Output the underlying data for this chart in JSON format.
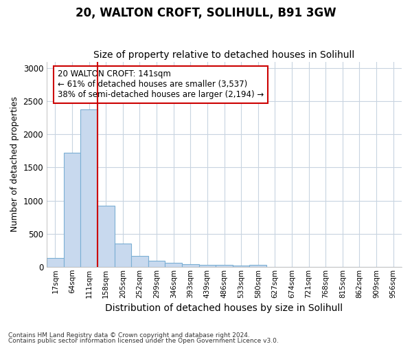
{
  "title1": "20, WALTON CROFT, SOLIHULL, B91 3GW",
  "title2": "Size of property relative to detached houses in Solihull",
  "xlabel": "Distribution of detached houses by size in Solihull",
  "ylabel": "Number of detached properties",
  "footer1": "Contains HM Land Registry data © Crown copyright and database right 2024.",
  "footer2": "Contains public sector information licensed under the Open Government Licence v3.0.",
  "bin_labels": [
    "17sqm",
    "64sqm",
    "111sqm",
    "158sqm",
    "205sqm",
    "252sqm",
    "299sqm",
    "346sqm",
    "393sqm",
    "439sqm",
    "486sqm",
    "533sqm",
    "580sqm",
    "627sqm",
    "674sqm",
    "721sqm",
    "768sqm",
    "815sqm",
    "862sqm",
    "909sqm",
    "956sqm"
  ],
  "bar_values": [
    130,
    1720,
    2380,
    920,
    350,
    160,
    90,
    55,
    40,
    30,
    25,
    20,
    25,
    0,
    0,
    0,
    0,
    0,
    0,
    0,
    0
  ],
  "bar_color": "#c8d9ee",
  "bar_edge_color": "#7bafd4",
  "vline_color": "#cc0000",
  "vline_pos": 2.5,
  "annotation_title": "20 WALTON CROFT: 141sqm",
  "annotation_line1": "← 61% of detached houses are smaller (3,537)",
  "annotation_line2": "38% of semi-detached houses are larger (2,194) →",
  "annotation_box_color": "#ffffff",
  "annotation_box_edge": "#cc0000",
  "ylim": [
    0,
    3100
  ],
  "yticks": [
    0,
    500,
    1000,
    1500,
    2000,
    2500,
    3000
  ],
  "background_color": "#ffffff",
  "plot_bg_color": "#ffffff",
  "grid_color": "#c8d4e0",
  "title1_fontsize": 12,
  "title2_fontsize": 10,
  "ylabel_fontsize": 9,
  "xlabel_fontsize": 10
}
